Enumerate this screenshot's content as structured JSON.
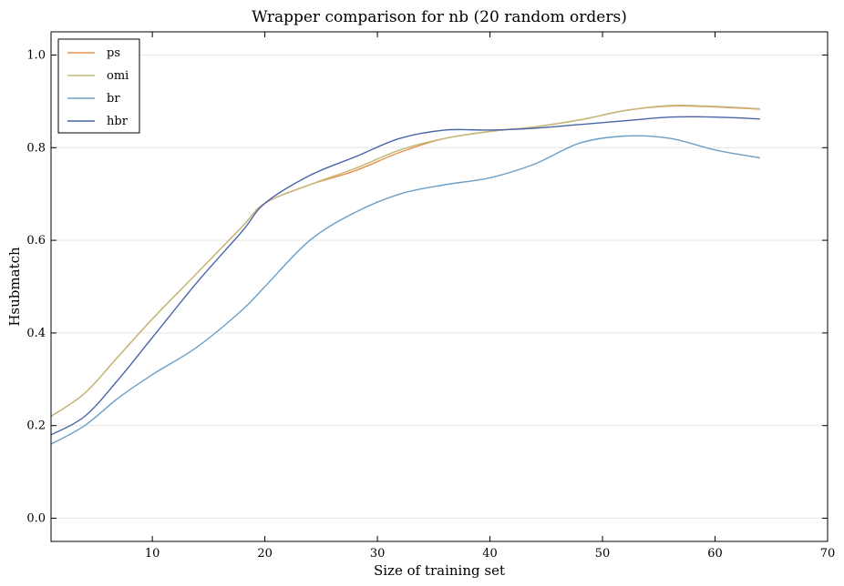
{
  "chart_data": {
    "type": "line",
    "title": "Wrapper comparison for nb (20 random orders)",
    "xlabel": "Size of training set",
    "ylabel": "Hsubmatch",
    "xlim": [
      1,
      70
    ],
    "ylim": [
      -0.05,
      1.05
    ],
    "xticks": [
      10,
      20,
      30,
      40,
      50,
      60,
      70
    ],
    "yticks": [
      0.0,
      0.2,
      0.4,
      0.6,
      0.8,
      1.0
    ],
    "xtick_labels": [
      "10",
      "20",
      "30",
      "40",
      "50",
      "60",
      "70"
    ],
    "ytick_labels": [
      "0.0",
      "0.2",
      "0.4",
      "0.6",
      "0.8",
      "1.0"
    ],
    "grid": "horizontal",
    "legend_position": "top-left",
    "x": [
      1,
      4,
      7,
      10,
      14,
      18,
      20,
      24,
      28,
      32,
      36,
      40,
      44,
      48,
      52,
      56,
      60,
      64
    ],
    "series": [
      {
        "name": "ps",
        "color": "#e8924a",
        "values": [
          0.22,
          0.27,
          0.35,
          0.43,
          0.53,
          0.63,
          0.68,
          0.72,
          0.75,
          0.79,
          0.82,
          0.835,
          0.845,
          0.86,
          0.88,
          0.89,
          0.888,
          0.883
        ]
      },
      {
        "name": "omi",
        "color": "#c3b87a",
        "values": [
          0.22,
          0.27,
          0.35,
          0.43,
          0.53,
          0.63,
          0.68,
          0.72,
          0.755,
          0.795,
          0.82,
          0.835,
          0.845,
          0.86,
          0.88,
          0.891,
          0.889,
          0.884
        ]
      },
      {
        "name": "br",
        "color": "#6a9fc8",
        "values": [
          0.16,
          0.2,
          0.26,
          0.31,
          0.37,
          0.45,
          0.5,
          0.6,
          0.66,
          0.7,
          0.72,
          0.735,
          0.765,
          0.81,
          0.825,
          0.82,
          0.795,
          0.778
        ]
      },
      {
        "name": "hbr",
        "color": "#4a64aa",
        "values": [
          0.18,
          0.22,
          0.3,
          0.39,
          0.51,
          0.62,
          0.68,
          0.74,
          0.78,
          0.82,
          0.838,
          0.838,
          0.842,
          0.85,
          0.858,
          0.866,
          0.866,
          0.862
        ]
      }
    ]
  }
}
